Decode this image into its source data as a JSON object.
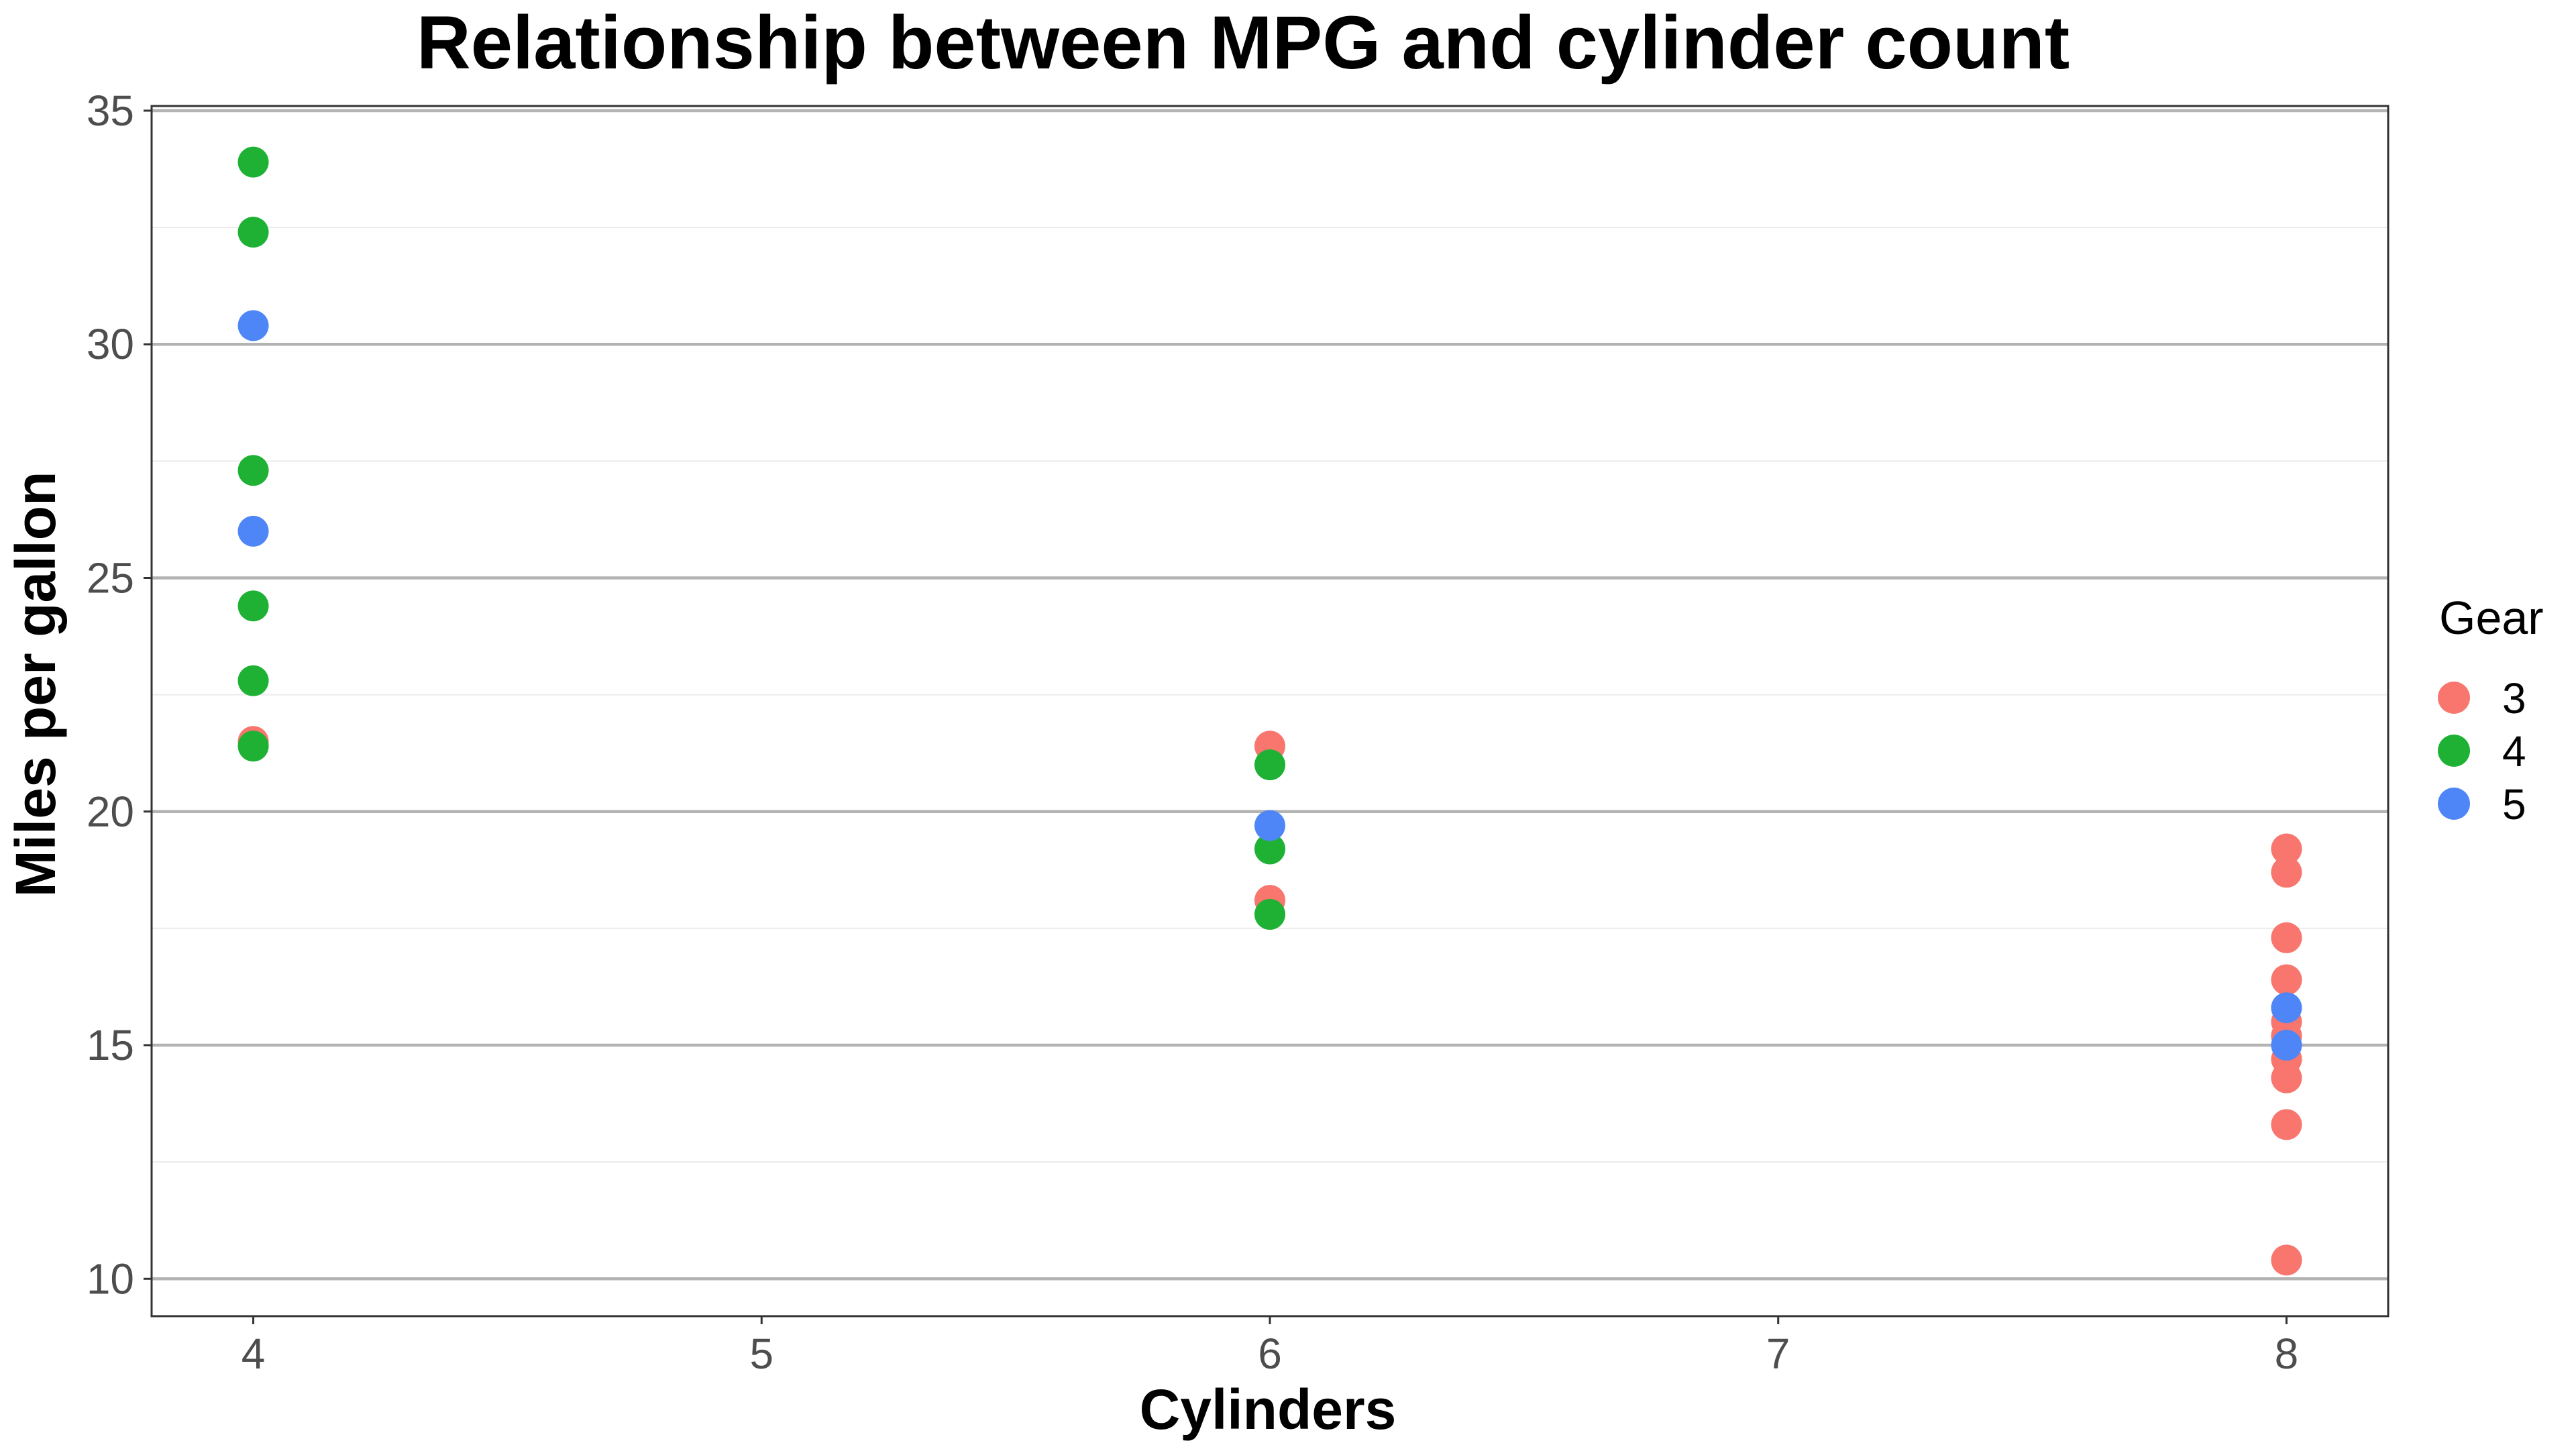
{
  "chart_data": {
    "type": "scatter",
    "title": "Relationship between MPG and cylinder count",
    "xlabel": "Cylinders",
    "ylabel": "Miles per gallon",
    "xlim": [
      3.8,
      8.2
    ],
    "ylim": [
      9.2,
      35.1
    ],
    "x_ticks": [
      4,
      5,
      6,
      7,
      8
    ],
    "y_ticks": [
      10,
      15,
      20,
      25,
      30,
      35
    ],
    "grid": "horizontal",
    "legend": {
      "title": "Gear",
      "position": "right"
    },
    "series": [
      {
        "name": "3",
        "color": "#f8766d",
        "points": [
          {
            "x": 4,
            "y": 21.5
          },
          {
            "x": 6,
            "y": 21.4
          },
          {
            "x": 6,
            "y": 18.1
          },
          {
            "x": 8,
            "y": 19.2
          },
          {
            "x": 8,
            "y": 18.7
          },
          {
            "x": 8,
            "y": 17.3
          },
          {
            "x": 8,
            "y": 16.4
          },
          {
            "x": 8,
            "y": 15.5
          },
          {
            "x": 8,
            "y": 15.2
          },
          {
            "x": 8,
            "y": 14.7
          },
          {
            "x": 8,
            "y": 14.3
          },
          {
            "x": 8,
            "y": 13.3
          },
          {
            "x": 8,
            "y": 10.4
          }
        ]
      },
      {
        "name": "4",
        "color": "#1eb134",
        "points": [
          {
            "x": 4,
            "y": 33.9
          },
          {
            "x": 4,
            "y": 32.4
          },
          {
            "x": 4,
            "y": 27.3
          },
          {
            "x": 4,
            "y": 24.4
          },
          {
            "x": 4,
            "y": 22.8
          },
          {
            "x": 4,
            "y": 21.4
          },
          {
            "x": 6,
            "y": 21.0
          },
          {
            "x": 6,
            "y": 19.2
          },
          {
            "x": 6,
            "y": 17.8
          }
        ]
      },
      {
        "name": "5",
        "color": "#4f86f7",
        "points": [
          {
            "x": 4,
            "y": 30.4
          },
          {
            "x": 4,
            "y": 26.0
          },
          {
            "x": 6,
            "y": 19.7
          },
          {
            "x": 8,
            "y": 15.8
          },
          {
            "x": 8,
            "y": 15.0
          }
        ]
      }
    ]
  }
}
